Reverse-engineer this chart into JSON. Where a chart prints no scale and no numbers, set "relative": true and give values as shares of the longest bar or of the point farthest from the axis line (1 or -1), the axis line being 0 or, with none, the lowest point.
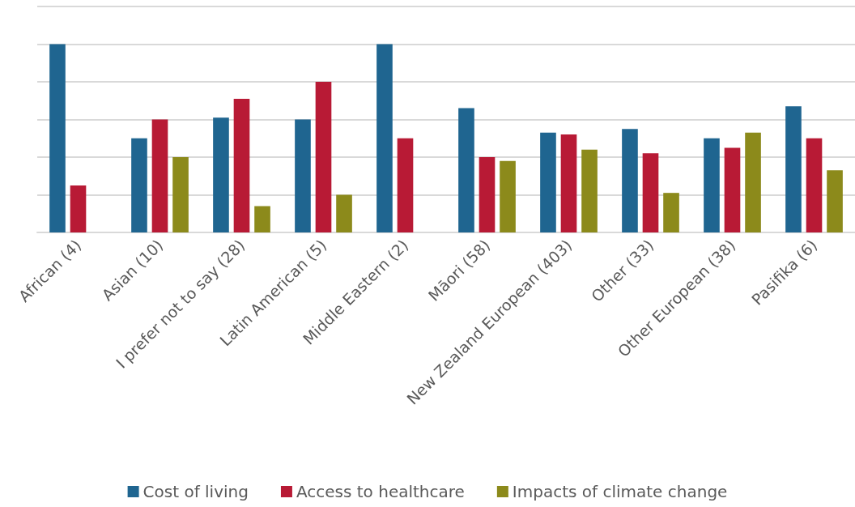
{
  "chart_data": {
    "type": "bar",
    "relative": true,
    "grid": "y",
    "legend": "bottom",
    "categories": [
      "African (4)",
      "Asian (10)",
      "I prefer not to say (28)",
      "Latin American (5)",
      "Middle Eastern (2)",
      "Māori (58)",
      "New Zealand European (403)",
      "Other (33)",
      "Other European (38)",
      "Pasifika (6)"
    ],
    "series": [
      {
        "name": "Cost of living",
        "color": "#1f6590",
        "values": [
          1.0,
          0.5,
          0.61,
          0.6,
          1.0,
          0.66,
          0.53,
          0.55,
          0.5,
          0.67
        ]
      },
      {
        "name": "Access to healthcare",
        "color": "#b81a35",
        "values": [
          0.25,
          0.6,
          0.71,
          0.8,
          0.5,
          0.4,
          0.52,
          0.42,
          0.45,
          0.5
        ]
      },
      {
        "name": "Impacts of climate change",
        "color": "#8c8a1b",
        "values": [
          null,
          0.4,
          0.14,
          0.2,
          null,
          0.38,
          0.44,
          0.21,
          0.53,
          0.33
        ]
      }
    ]
  }
}
